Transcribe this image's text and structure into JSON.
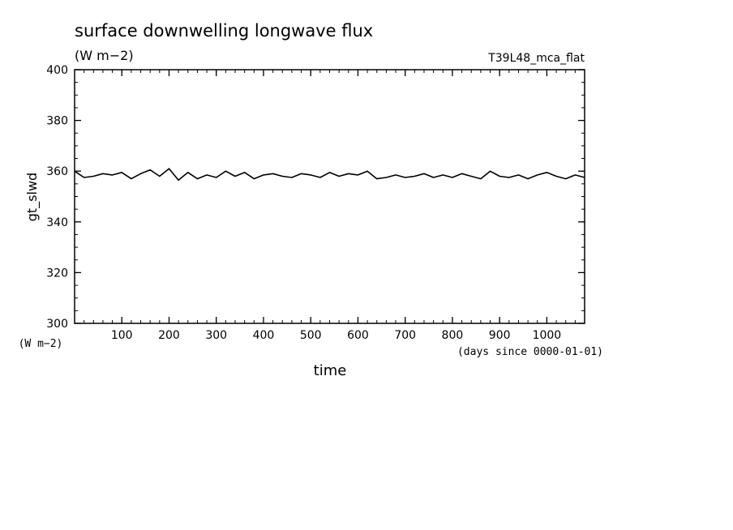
{
  "chart_data": {
    "type": "line",
    "title": "surface downwelling longwave flux",
    "subtitle": "(W m−2)",
    "run_label": "T39L48_mca_flat",
    "xlabel": "time",
    "x_units": "(days since 0000-01-01)",
    "ylabel": "gt_slwd",
    "y_units": "(W m−2)",
    "xlim": [
      0,
      1080
    ],
    "ylim": [
      300,
      400
    ],
    "x_ticks": [
      100,
      200,
      300,
      400,
      500,
      600,
      700,
      800,
      900,
      1000
    ],
    "y_ticks": [
      300,
      320,
      340,
      360,
      380,
      400
    ],
    "grid": false,
    "line_color": "#000000",
    "series": [
      {
        "x": [
          0,
          20,
          40,
          60,
          80,
          100,
          120,
          140,
          160,
          180,
          200,
          220,
          240,
          260,
          280,
          300,
          320,
          340,
          360,
          380,
          400,
          420,
          440,
          460,
          480,
          500,
          520,
          540,
          560,
          580,
          600,
          620,
          640,
          660,
          680,
          700,
          720,
          740,
          760,
          780,
          800,
          820,
          840,
          860,
          880,
          900,
          920,
          940,
          960,
          980,
          1000,
          1020,
          1040,
          1060,
          1080
        ],
        "values": [
          360.0,
          357.5,
          358.0,
          359.0,
          358.5,
          359.5,
          357.0,
          359.0,
          360.5,
          358.0,
          361.0,
          356.5,
          359.5,
          357.0,
          358.5,
          357.5,
          360.0,
          358.0,
          359.5,
          357.0,
          358.5,
          359.0,
          358.0,
          357.5,
          359.0,
          358.5,
          357.5,
          359.5,
          358.0,
          359.0,
          358.5,
          360.0,
          357.0,
          357.5,
          358.5,
          357.5,
          358.0,
          359.0,
          357.5,
          358.5,
          357.5,
          359.0,
          358.0,
          357.0,
          360.0,
          358.0,
          357.5,
          358.5,
          357.0,
          358.5,
          359.5,
          358.0,
          357.0,
          358.5,
          357.5
        ]
      }
    ]
  }
}
